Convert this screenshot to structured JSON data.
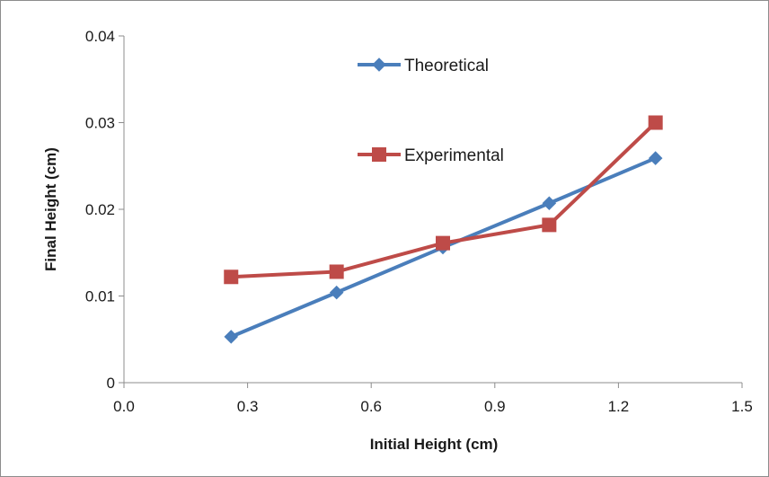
{
  "chart_data": {
    "type": "line",
    "title": "",
    "xlabel": "Initial Height (cm)",
    "ylabel": "Final Height (cm)",
    "xlim": [
      0.0,
      1.5
    ],
    "ylim": [
      0,
      0.04
    ],
    "x_ticks": [
      0.0,
      0.3,
      0.6,
      0.9,
      1.2,
      1.5
    ],
    "x_tick_labels": [
      "0.0",
      "0.3",
      "0.6",
      "0.9",
      "1.2",
      "1.5"
    ],
    "y_ticks": [
      0,
      0.01,
      0.02,
      0.03,
      0.04
    ],
    "y_tick_labels": [
      "0",
      "0.01",
      "0.02",
      "0.03",
      "0.04"
    ],
    "grid": false,
    "legend_position": "top-center",
    "series": [
      {
        "name": "Theoretical",
        "color": "#4a7ebb",
        "marker": "diamond",
        "x": [
          0.26,
          0.516,
          0.774,
          1.032,
          1.29
        ],
        "y": [
          0.0053,
          0.0104,
          0.0156,
          0.0207,
          0.0259
        ]
      },
      {
        "name": "Experimental",
        "color": "#be4b48",
        "marker": "square",
        "x": [
          0.26,
          0.516,
          0.774,
          1.032,
          1.29
        ],
        "y": [
          0.0122,
          0.0128,
          0.0161,
          0.0182,
          0.03
        ]
      }
    ]
  }
}
